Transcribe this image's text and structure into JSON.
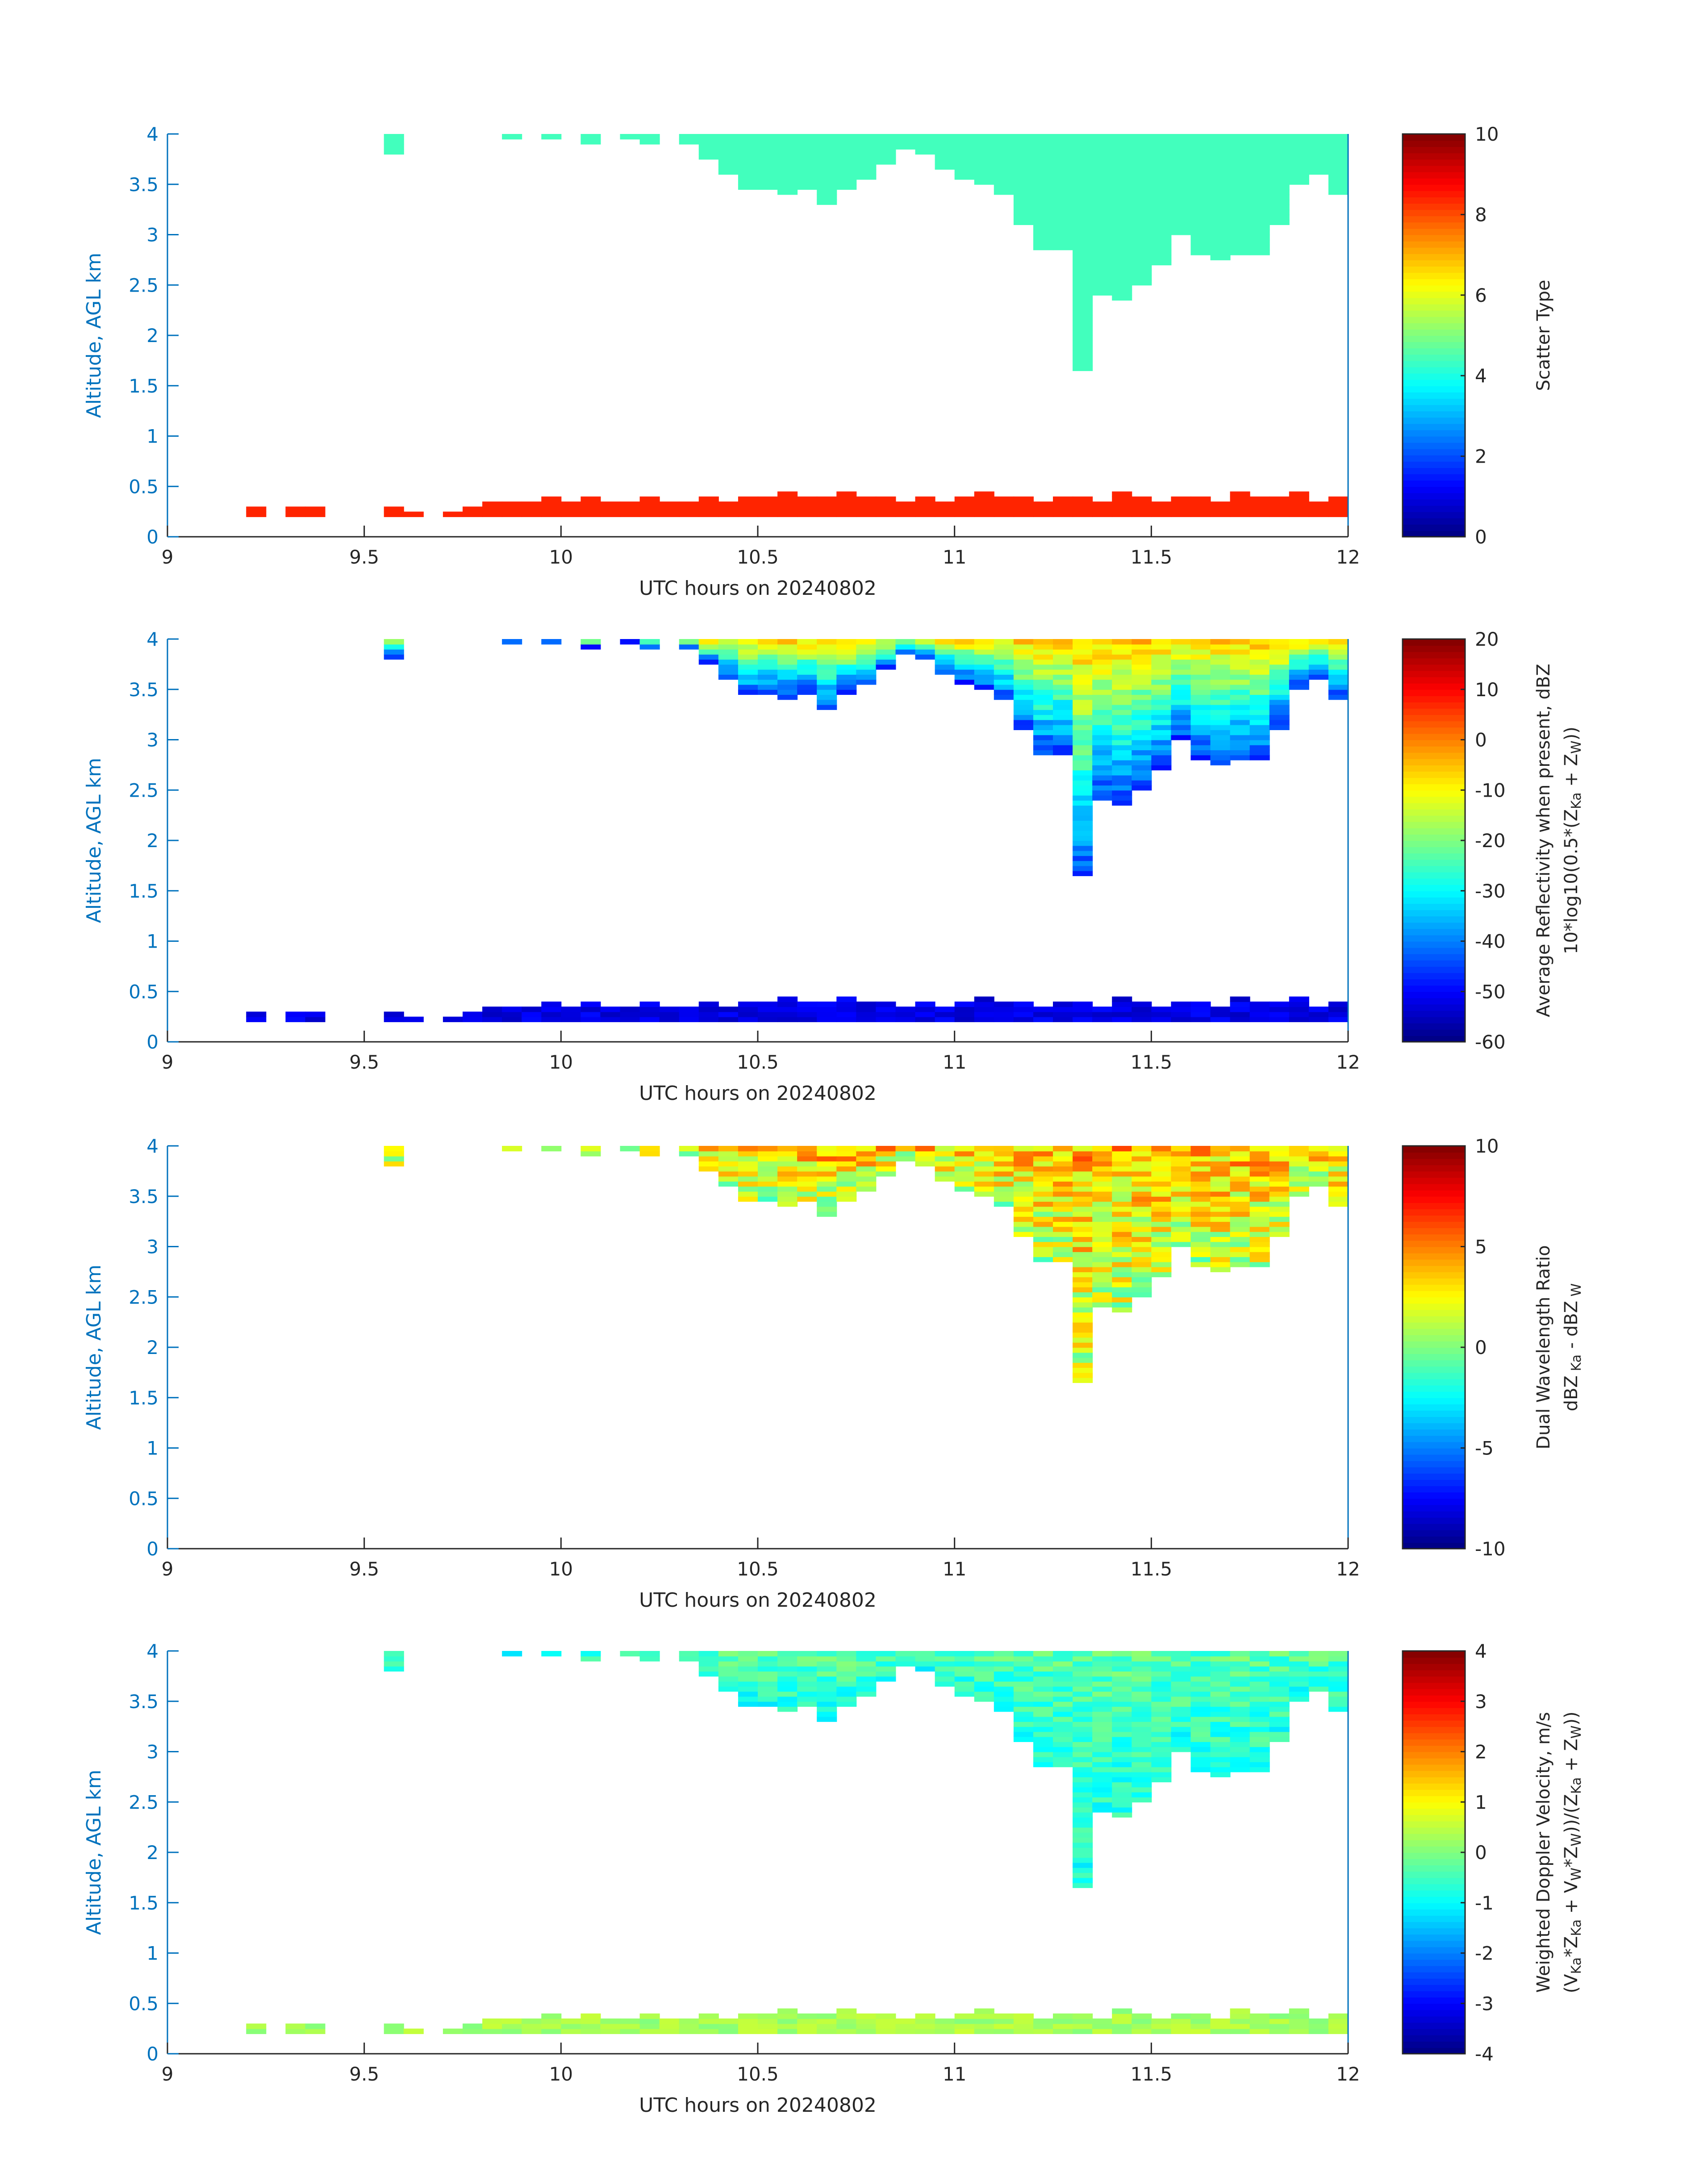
{
  "shared": {
    "x_start_hours": 9,
    "bin_hours": 0.05,
    "cloud_top_km": 4,
    "cloud_base_km": [
      null,
      null,
      null,
      null,
      null,
      null,
      null,
      null,
      null,
      null,
      null,
      3.8,
      null,
      null,
      null,
      null,
      null,
      3.95,
      null,
      3.95,
      null,
      3.9,
      null,
      3.95,
      3.9,
      null,
      3.9,
      3.75,
      3.6,
      3.45,
      3.45,
      3.4,
      3.45,
      3.3,
      3.45,
      3.55,
      3.7,
      3.85,
      3.8,
      3.65,
      3.55,
      3.5,
      3.4,
      3.1,
      2.85,
      2.85,
      1.65,
      2.4,
      2.35,
      2.5,
      2.7,
      3.0,
      2.8,
      2.75,
      2.8,
      2.8,
      3.1,
      3.5,
      3.6,
      3.4
    ],
    "surface_layer_base_km": 0.2,
    "surface_layer_top_km": [
      null,
      null,
      null,
      null,
      0.3,
      null,
      0.3,
      0.3,
      null,
      null,
      null,
      0.3,
      0.25,
      null,
      0.25,
      0.3,
      0.35,
      0.35,
      0.35,
      0.4,
      0.35,
      0.4,
      0.35,
      0.35,
      0.4,
      0.35,
      0.35,
      0.4,
      0.35,
      0.4,
      0.4,
      0.45,
      0.4,
      0.4,
      0.45,
      0.4,
      0.4,
      0.35,
      0.4,
      0.35,
      0.4,
      0.45,
      0.4,
      0.4,
      0.35,
      0.4,
      0.4,
      0.35,
      0.45,
      0.4,
      0.35,
      0.4,
      0.4,
      0.35,
      0.45,
      0.4,
      0.4,
      0.45,
      0.35,
      0.4
    ]
  },
  "chart_data": [
    {
      "type": "heatmap",
      "xlabel": "UTC hours on 20240802",
      "ylabel": "Altitude, AGL km",
      "xlim": [
        9,
        12
      ],
      "ylim": [
        0,
        4
      ],
      "xticks": [
        "9",
        "9.5",
        "10",
        "10.5",
        "11",
        "11.5",
        "12"
      ],
      "yticks": [
        "0",
        "0.5",
        "1",
        "1.5",
        "2",
        "2.5",
        "3",
        "3.5",
        "4"
      ],
      "colormap": "jet",
      "clim": [
        0,
        10
      ],
      "cbticks": [
        "0",
        "2",
        "4",
        "6",
        "8",
        "10"
      ],
      "cblabel": [
        [
          {
            "t": "Scatter Type"
          }
        ]
      ],
      "cloud_top_value": 4.4,
      "cloud_base_value": 4.4,
      "surface_value": 8.4
    },
    {
      "type": "heatmap",
      "xlabel": "UTC hours on 20240802",
      "ylabel": "Altitude, AGL km",
      "xlim": [
        9,
        12
      ],
      "ylim": [
        0,
        4
      ],
      "xticks": [
        "9",
        "9.5",
        "10",
        "10.5",
        "11",
        "11.5",
        "12"
      ],
      "yticks": [
        "0",
        "0.5",
        "1",
        "1.5",
        "2",
        "2.5",
        "3",
        "3.5",
        "4"
      ],
      "colormap": "jet",
      "clim": [
        -60,
        20
      ],
      "cbticks": [
        "-60",
        "-50",
        "-40",
        "-30",
        "-20",
        "-10",
        "0",
        "10",
        "20"
      ],
      "cblabel": [
        [
          {
            "t": "Average Reflectivity when present, dBZ"
          }
        ],
        [
          {
            "t": "10*log10(0.5*(Z"
          },
          {
            "t": "Ka",
            "sub": true
          },
          {
            "t": " + Z"
          },
          {
            "t": "W",
            "sub": true
          },
          {
            "t": "))"
          }
        ]
      ],
      "cloud_top_value": -5,
      "cloud_base_value": -45,
      "surface_value": -52
    },
    {
      "type": "heatmap",
      "xlabel": "UTC hours on 20240802",
      "ylabel": "Altitude, AGL km",
      "xlim": [
        9,
        12
      ],
      "ylim": [
        0,
        4
      ],
      "xticks": [
        "9",
        "9.5",
        "10",
        "10.5",
        "11",
        "11.5",
        "12"
      ],
      "yticks": [
        "0",
        "0.5",
        "1",
        "1.5",
        "2",
        "2.5",
        "3",
        "3.5",
        "4"
      ],
      "colormap": "jet",
      "clim": [
        -10,
        10
      ],
      "cbticks": [
        "-10",
        "-5",
        "0",
        "5",
        "10"
      ],
      "cblabel": [
        [
          {
            "t": "Dual Wavelength Ratio"
          }
        ],
        [
          {
            "t": "dBZ"
          },
          {
            "t": " Ka",
            "sub": true
          },
          {
            "t": " - dBZ"
          },
          {
            "t": " W",
            "sub": true
          }
        ]
      ],
      "cloud_top_value": 4,
      "cloud_base_value": 1,
      "surface_value": null
    },
    {
      "type": "heatmap",
      "xlabel": "UTC hours on 20240802",
      "ylabel": "Altitude, AGL km",
      "xlim": [
        9,
        12
      ],
      "ylim": [
        0,
        4
      ],
      "xticks": [
        "9",
        "9.5",
        "10",
        "10.5",
        "11",
        "11.5",
        "12"
      ],
      "yticks": [
        "0",
        "0.5",
        "1",
        "1.5",
        "2",
        "2.5",
        "3",
        "3.5",
        "4"
      ],
      "colormap": "jet",
      "clim": [
        -4,
        4
      ],
      "cbticks": [
        "-4",
        "-3",
        "-2",
        "-1",
        "0",
        "1",
        "2",
        "3",
        "4"
      ],
      "cblabel": [
        [
          {
            "t": "Weighted Doppler Velocity, m/s"
          }
        ],
        [
          {
            "t": "(V"
          },
          {
            "t": "Ka",
            "sub": true
          },
          {
            "t": "*Z"
          },
          {
            "t": "Ka",
            "sub": true
          },
          {
            "t": " + V"
          },
          {
            "t": "W",
            "sub": true
          },
          {
            "t": "*Z"
          },
          {
            "t": "W",
            "sub": true
          },
          {
            "t": "))/(Z"
          },
          {
            "t": "Ka",
            "sub": true
          },
          {
            "t": " + Z"
          },
          {
            "t": "W",
            "sub": true
          },
          {
            "t": "))"
          }
        ]
      ],
      "cloud_top_value": -0.3,
      "cloud_base_value": -0.8,
      "surface_value": 0.3
    }
  ]
}
